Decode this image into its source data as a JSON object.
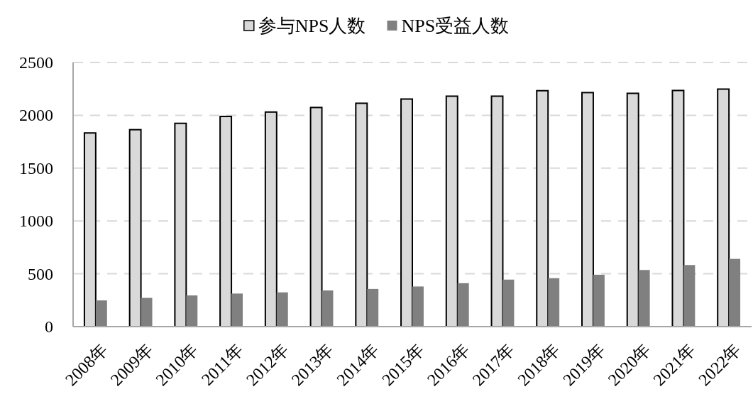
{
  "chart_data": {
    "type": "bar",
    "categories": [
      "2008年",
      "2009年",
      "2010年",
      "2011年",
      "2012年",
      "2013年",
      "2014年",
      "2015年",
      "2016年",
      "2017年",
      "2018年",
      "2019年",
      "2020年",
      "2021年",
      "2022年"
    ],
    "series": [
      {
        "name": "参与NPS人数",
        "color": "#d9d9d9",
        "values": [
          1833,
          1864,
          1924,
          1989,
          2031,
          2074,
          2114,
          2154,
          2181,
          2181,
          2233,
          2215,
          2208,
          2235,
          2248
        ]
      },
      {
        "name": "NPS受益人数",
        "color": "#808080",
        "values": [
          248,
          272,
          295,
          313,
          324,
          342,
          357,
          380,
          411,
          445,
          458,
          491,
          536,
          583,
          641
        ]
      }
    ],
    "ylim": [
      0,
      2500
    ],
    "yticks": [
      0,
      500,
      1000,
      1500,
      2000,
      2500
    ],
    "grid": "y",
    "legend": "top"
  }
}
